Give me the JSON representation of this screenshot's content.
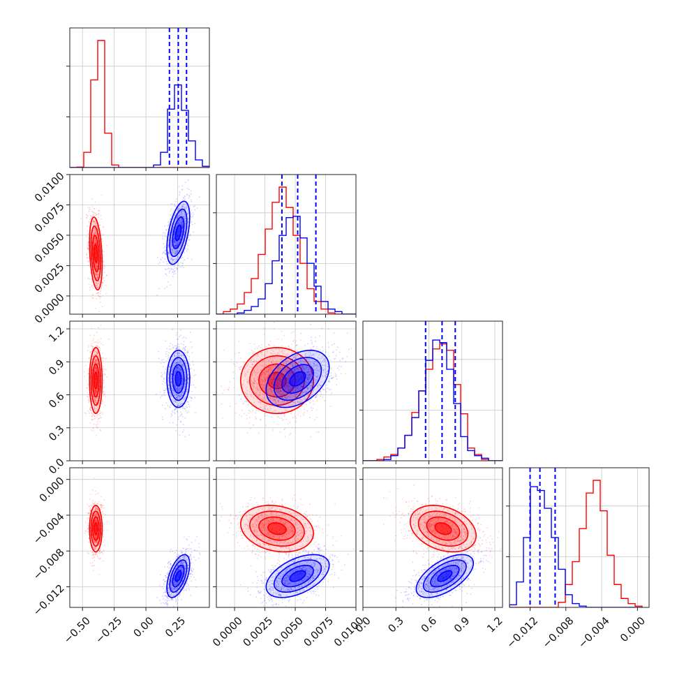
{
  "chart_data": {
    "type": "corner",
    "colors": {
      "series_a": "#ff0000",
      "series_b": "#0000ff"
    },
    "grid": true,
    "dims": [
      {
        "range": [
          -0.6,
          0.5
        ],
        "ticks": [
          -0.5,
          -0.25,
          0.0,
          0.25
        ],
        "tick_labels": [
          "−0.50",
          "−0.25",
          "0.00",
          "0.25"
        ]
      },
      {
        "range": [
          -0.0015,
          0.01
        ],
        "ticks": [
          0.0,
          0.0025,
          0.005,
          0.0075,
          0.01
        ],
        "tick_labels": [
          "0.0000",
          "0.0025",
          "0.0050",
          "0.0075",
          "0.0100"
        ]
      },
      {
        "range": [
          0.0,
          1.27
        ],
        "ticks": [
          0.0,
          0.3,
          0.6,
          0.9,
          1.2
        ],
        "tick_labels": [
          "0.0",
          "0.3",
          "0.6",
          "0.9",
          "1.2"
        ]
      },
      {
        "range": [
          -0.0143,
          0.0013
        ],
        "ticks": [
          -0.012,
          -0.008,
          -0.004,
          0.0
        ],
        "tick_labels": [
          "−0.012",
          "−0.008",
          "−0.004",
          "0.000"
        ]
      }
    ],
    "series": [
      {
        "color": "#ff0000",
        "mean": [
          -0.395,
          0.0035,
          0.73,
          -0.0055
        ],
        "std": [
          0.025,
          0.0015,
          0.15,
          0.0013
        ],
        "corr": {
          "0-1": -0.3,
          "0-3": 0.0,
          "1-2": 0.0,
          "1-3": -0.2,
          "2-3": -0.3
        }
      },
      {
        "color": "#0000ff",
        "mean": [
          0.255,
          0.0052,
          0.745,
          -0.0108
        ],
        "std": [
          0.045,
          0.0013,
          0.13,
          0.0012
        ],
        "corr": {
          "0-1": 0.5,
          "0-3": 0.55,
          "1-2": 0.4,
          "1-3": 0.5,
          "2-3": 0.6
        }
      }
    ],
    "quantile_lines": [
      [
        0.185,
        0.255,
        0.32
      ],
      [
        0.0039,
        0.0052,
        0.0067
      ],
      [
        0.57,
        0.72,
        0.84
      ],
      [
        -0.012,
        -0.0109,
        -0.0092
      ]
    ],
    "histograms": [
      {
        "edges": [
          -0.6,
          -0.545,
          -0.49,
          -0.435,
          -0.38,
          -0.325,
          -0.27,
          -0.215,
          -0.16,
          -0.105,
          -0.05,
          0.005,
          0.06,
          0.115,
          0.17,
          0.225,
          0.28,
          0.335,
          0.39,
          0.445,
          0.5
        ],
        "red": [
          0,
          0.004,
          0.12,
          0.69,
          1.0,
          0.27,
          0.02,
          0,
          0,
          0,
          0,
          0,
          0,
          0,
          0,
          0,
          0,
          0,
          0,
          0
        ],
        "blue": [
          0,
          0,
          0,
          0,
          0,
          0,
          0,
          0,
          0,
          0,
          0,
          0,
          0.02,
          0.12,
          0.46,
          0.65,
          0.45,
          0.21,
          0.06,
          0.01
        ]
      },
      {
        "edges": [
          -0.0015,
          -0.000925,
          -0.00035,
          0.000225,
          0.0008,
          0.001375,
          0.00195,
          0.002525,
          0.0031,
          0.003675,
          0.00425,
          0.004825,
          0.0054,
          0.005975,
          0.00655,
          0.007125,
          0.0077,
          0.008275,
          0.00885,
          0.009425,
          0.01
        ],
        "red": [
          0,
          0.02,
          0.04,
          0.08,
          0.17,
          0.28,
          0.47,
          0.67,
          0.88,
          1.0,
          0.84,
          0.62,
          0.4,
          0.2,
          0.1,
          0.04,
          0.01,
          0,
          0,
          0
        ],
        "blue": [
          0,
          0,
          0,
          0.01,
          0.03,
          0.06,
          0.12,
          0.24,
          0.42,
          0.62,
          0.76,
          0.77,
          0.6,
          0.4,
          0.22,
          0.1,
          0.04,
          0.02,
          0,
          0
        ],
        "normalize": "max"
      },
      {
        "edges": [
          0.0,
          0.0635,
          0.127,
          0.1905,
          0.254,
          0.3175,
          0.381,
          0.4445,
          0.508,
          0.5715,
          0.635,
          0.6985,
          0.762,
          0.8255,
          0.889,
          0.9525,
          1.016,
          1.0795,
          1.143,
          1.2065,
          1.27
        ],
        "red": [
          0,
          0,
          0.01,
          0.03,
          0.05,
          0.1,
          0.2,
          0.38,
          0.55,
          0.72,
          0.88,
          0.92,
          0.87,
          0.6,
          0.37,
          0.1,
          0.05,
          0.01,
          0,
          0
        ],
        "blue": [
          0,
          0,
          0,
          0.01,
          0.04,
          0.1,
          0.2,
          0.34,
          0.55,
          0.79,
          0.95,
          0.93,
          0.72,
          0.45,
          0.19,
          0.08,
          0.04,
          0.02,
          0,
          0
        ],
        "normalize": "max"
      },
      {
        "edges": [
          -0.0143,
          -0.01352,
          -0.01274,
          -0.01196,
          -0.01118,
          -0.0104,
          -0.00962,
          -0.00884,
          -0.00806,
          -0.00728,
          -0.0065,
          -0.00572,
          -0.00494,
          -0.00416,
          -0.00338,
          -0.0026,
          -0.00182,
          -0.00104,
          -0.00026,
          0.00052
        ],
        "red": [
          0,
          0,
          0,
          0,
          0,
          0,
          0,
          0.04,
          0.18,
          0.36,
          0.62,
          0.9,
          1.0,
          0.76,
          0.41,
          0.18,
          0.07,
          0.03,
          0.01
        ],
        "blue": [
          0.02,
          0.2,
          0.55,
          0.95,
          0.92,
          0.78,
          0.55,
          0.3,
          0.1,
          0.03,
          0.01,
          0,
          0,
          0,
          0,
          0,
          0,
          0,
          0
        ],
        "normalize": "max"
      }
    ]
  }
}
